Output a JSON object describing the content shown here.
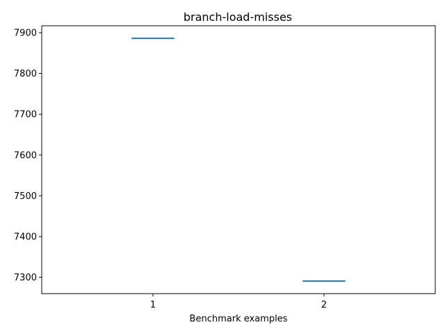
{
  "chart_data": {
    "type": "line",
    "title": "branch-load-misses",
    "xlabel": "Benchmark examples",
    "ylabel": "",
    "x_ticks": [
      1,
      2
    ],
    "y_ticks": [
      7300,
      7400,
      7500,
      7600,
      7700,
      7800,
      7900
    ],
    "xlim": [
      0.35,
      2.65
    ],
    "ylim": [
      7260,
      7917
    ],
    "grid": false,
    "series": [
      {
        "color": "#1f77b4",
        "x": [
          1
        ],
        "values": [
          7886
        ]
      },
      {
        "color": "#1f77b4",
        "x": [
          2
        ],
        "values": [
          7291
        ]
      }
    ],
    "segment_half_width": 0.125
  }
}
